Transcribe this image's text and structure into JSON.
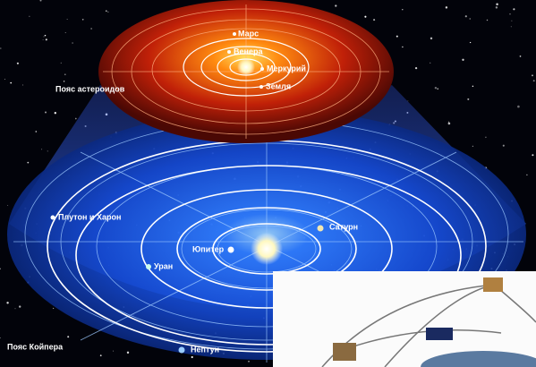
{
  "labels": [
    "Марс",
    "Венера",
    "Меркурий",
    "Земля",
    "Пояс астероидов",
    "Плутон и Харон",
    "Сатурн",
    "Юпитер",
    "Уран",
    "Нептун",
    "Пояс Койпера"
  ]
}
